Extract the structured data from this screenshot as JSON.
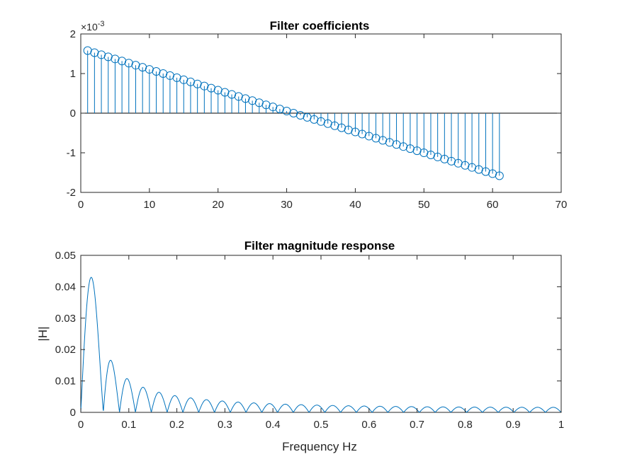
{
  "colors": {
    "series": "#0072BD",
    "axes": "#262626",
    "background": "#ffffff"
  },
  "chart_data": [
    {
      "type": "stem",
      "title": "Filter coefficients",
      "xlabel": "",
      "ylabel": "",
      "y_exponent_base": "×10",
      "y_exponent_power": "-3",
      "xlim": [
        0,
        70
      ],
      "ylim": [
        -2,
        2
      ],
      "xticks": [
        0,
        10,
        20,
        30,
        40,
        50,
        60,
        70
      ],
      "xtick_labels": [
        "0",
        "10",
        "20",
        "30",
        "40",
        "50",
        "60",
        "70"
      ],
      "yticks": [
        -2,
        -1,
        0,
        1,
        2
      ],
      "ytick_labels": [
        "-2",
        "-1",
        "0",
        "1",
        "2"
      ],
      "grid": false,
      "x": [
        1,
        61
      ],
      "y_first": 1.58,
      "y_last": -1.58,
      "n_points": 61,
      "note_values_scale": "values shown in units of 1e-3"
    },
    {
      "type": "line",
      "title": "Filter magnitude response",
      "xlabel": "Frequency Hz",
      "ylabel": "|H|",
      "xlim": [
        0,
        1
      ],
      "ylim": [
        0,
        0.05
      ],
      "xticks": [
        0,
        0.1,
        0.2,
        0.3,
        0.4,
        0.5,
        0.6,
        0.7,
        0.8,
        0.9,
        1
      ],
      "xtick_labels": [
        "0",
        "0.1",
        "0.2",
        "0.3",
        "0.4",
        "0.5",
        "0.6",
        "0.7",
        "0.8",
        "0.9",
        "1"
      ],
      "yticks": [
        0,
        0.01,
        0.02,
        0.03,
        0.04,
        0.05
      ],
      "ytick_labels": [
        "0",
        "0.01",
        "0.02",
        "0.03",
        "0.04",
        "0.05"
      ],
      "grid": false,
      "peaks": [
        {
          "x": 0.012,
          "y": 0.043
        },
        {
          "x": 0.033,
          "y": 0.0163
        },
        {
          "x": 0.049,
          "y": 0.0105
        },
        {
          "x": 0.066,
          "y": 0.0079
        },
        {
          "x": 0.082,
          "y": 0.0063
        },
        {
          "x": 0.5,
          "y": 0.0011
        },
        {
          "x": 0.918,
          "y": 0.0063
        },
        {
          "x": 0.934,
          "y": 0.0079
        },
        {
          "x": 0.951,
          "y": 0.0105
        },
        {
          "x": 0.967,
          "y": 0.0163
        },
        {
          "x": 0.988,
          "y": 0.043
        }
      ]
    }
  ]
}
